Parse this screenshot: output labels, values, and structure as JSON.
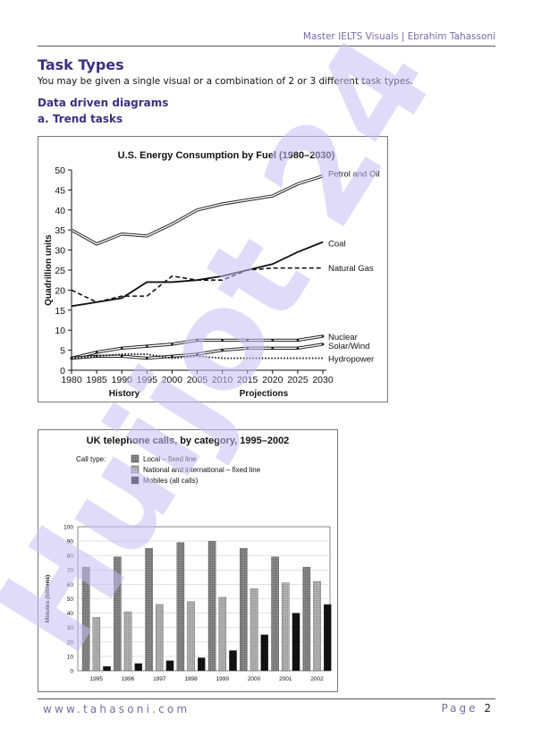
{
  "header": {
    "text": "Master IELTS Visuals | Ebrahim Tahassoni"
  },
  "section_title": "Task Types",
  "intro": "You may be given a single visual or a combination of 2 or 3 different task types.",
  "subheading1": "Data driven diagrams",
  "subheading2": "a. Trend tasks",
  "watermark": {
    "text": "Huijot 24",
    "color": "#c8bff5"
  },
  "footer": {
    "left": "www.tahasoni.com",
    "page_label": "Page",
    "page_number": "2"
  },
  "chart_data": [
    {
      "type": "line",
      "title": "U.S. Energy Consumption by Fuel (1980–2030)",
      "ylabel": "Quadrillion units",
      "xlabel_left": "History",
      "xlabel_right": "Projections",
      "ylim": [
        0,
        50
      ],
      "yticks": [
        "0",
        "5",
        "10",
        "15",
        "20",
        "25",
        "30",
        "35",
        "40",
        "45",
        "50"
      ],
      "x": [
        1980,
        1985,
        1990,
        1995,
        2000,
        2005,
        2010,
        2015,
        2020,
        2025,
        2030
      ],
      "xticks": [
        "1980",
        "1985",
        "1990",
        "1995",
        "2000",
        "2005",
        "2010",
        "2015",
        "2020",
        "2025",
        "2030"
      ],
      "legend": "labels at line ends (right)",
      "series": [
        {
          "name": "Petrol and Oil",
          "style": "double",
          "values": [
            35,
            31.5,
            34,
            33.5,
            36.5,
            40,
            41.5,
            42.5,
            43.5,
            46.5,
            48.5
          ]
        },
        {
          "name": "Coal",
          "style": "solid",
          "values": [
            16,
            17,
            18,
            22,
            22,
            22.5,
            23.5,
            25,
            26.5,
            29.5,
            32
          ]
        },
        {
          "name": "Natural Gas",
          "style": "dashed",
          "values": [
            20,
            17,
            18.5,
            18.5,
            23.5,
            22.5,
            22.5,
            25,
            25.5,
            25.5,
            25.5
          ]
        },
        {
          "name": "Nuclear",
          "style": "double-marker",
          "values": [
            3,
            4.5,
            5.5,
            6,
            6.5,
            7.5,
            7.5,
            7.5,
            7.5,
            7.5,
            8.5
          ]
        },
        {
          "name": "Solar/Wind",
          "style": "double-marker",
          "values": [
            3,
            3.5,
            3.5,
            3,
            3.5,
            4,
            5,
            5.5,
            5.5,
            5.5,
            6.5
          ]
        },
        {
          "name": "Hydropower",
          "style": "dotted",
          "values": [
            3,
            3.5,
            4,
            4,
            3,
            3.5,
            3,
            3,
            3,
            3,
            3
          ]
        }
      ]
    },
    {
      "type": "bar",
      "title": "UK telephone calls, by category, 1995–2002",
      "legend_title": "Call type:",
      "ylabel": "Minutes (billions)",
      "ylim": [
        0,
        100
      ],
      "yticks": [
        "0",
        "10",
        "20",
        "30",
        "40",
        "50",
        "60",
        "70",
        "80",
        "90",
        "100"
      ],
      "categories": [
        "1995",
        "1996",
        "1997",
        "1998",
        "1999",
        "2000",
        "2001",
        "2002"
      ],
      "series": [
        {
          "name": "Local – fixed line",
          "color": "#8a8a8a",
          "values": [
            72,
            79,
            85,
            89,
            90,
            85,
            79,
            72
          ]
        },
        {
          "name": "National and international – fixed line",
          "color": "#b4b4b4",
          "values": [
            37,
            41,
            46,
            48,
            51,
            57,
            61,
            62
          ]
        },
        {
          "name": "Mobiles (all calls)",
          "color": "#111111",
          "values": [
            3,
            5,
            7,
            9,
            14,
            25,
            40,
            46
          ]
        }
      ]
    }
  ]
}
